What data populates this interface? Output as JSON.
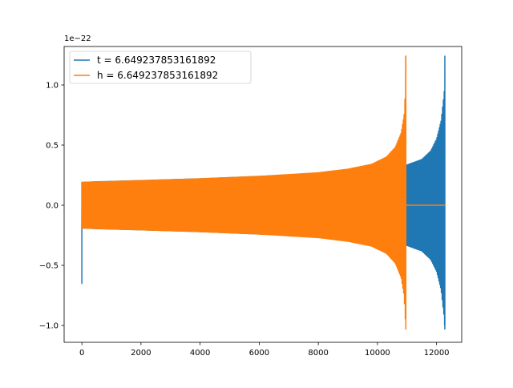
{
  "chart_data": {
    "type": "line",
    "title": "",
    "xlabel": "",
    "ylabel": "",
    "offset_text": "1e−22",
    "xlim": [
      -600,
      12850
    ],
    "ylim": [
      -1.14,
      1.32
    ],
    "x_ticks": [
      0,
      2000,
      4000,
      6000,
      8000,
      10000,
      12000
    ],
    "x_tick_labels": [
      "0",
      "2000",
      "4000",
      "6000",
      "8000",
      "10000",
      "12000"
    ],
    "y_ticks": [
      -1.0,
      -0.5,
      0.0,
      0.5,
      1.0
    ],
    "y_tick_labels": [
      "−1.0",
      "−0.5",
      "0.0",
      "0.5",
      "1.0"
    ],
    "grid": false,
    "legend_position": "upper-left",
    "series": [
      {
        "name": "t = 6.649237853161892",
        "color": "#1f77b4",
        "envelope_x": [
          0,
          500,
          2000,
          4000,
          6000,
          8000,
          9000,
          10000,
          10500,
          10800,
          11000,
          11500,
          11800,
          12000,
          12150,
          12250,
          12280
        ],
        "envelope_amp": [
          0.19,
          0.195,
          0.205,
          0.22,
          0.24,
          0.26,
          0.27,
          0.29,
          0.31,
          0.32,
          0.335,
          0.38,
          0.45,
          0.55,
          0.7,
          0.92,
          1.03
        ],
        "peak_max": 1.24,
        "start_spike_min": -0.65,
        "start_spike_max": 0.13,
        "post_end_value": 0.0
      },
      {
        "name": "h = 6.649237853161892",
        "color": "#ff7f0e",
        "envelope_x": [
          0,
          2000,
          4000,
          6000,
          8000,
          9000,
          9800,
          10300,
          10600,
          10800,
          10900,
          10960
        ],
        "envelope_amp": [
          0.19,
          0.205,
          0.22,
          0.24,
          0.27,
          0.3,
          0.34,
          0.4,
          0.48,
          0.6,
          0.75,
          1.03
        ],
        "peak_max": 1.24,
        "post_end_value": 0.0,
        "post_end_until": 12280
      }
    ]
  }
}
